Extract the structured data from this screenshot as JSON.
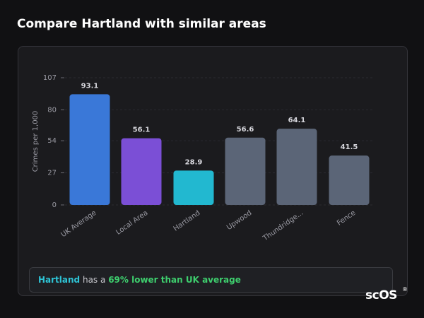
{
  "chart_data": {
    "type": "bar",
    "title": "Compare Hartland with similar areas",
    "y_label": "Crimes per 1,000",
    "categories": [
      "UK Average",
      "Local Area",
      "Hartland",
      "Upwood",
      "Thundridge...",
      "Fence"
    ],
    "values": [
      93.1,
      56.1,
      28.9,
      56.6,
      64.1,
      41.5
    ],
    "colors": [
      "#3a78d8",
      "#7b4fd6",
      "#22b8d0",
      "#5b6577",
      "#5b6577",
      "#5b6577"
    ],
    "ylim": [
      0,
      107
    ],
    "yticks": [
      0,
      27,
      54,
      80,
      107
    ],
    "grid": true,
    "summary": {
      "area": "Hartland",
      "text": "has a",
      "highlight": "69% lower than UK average"
    },
    "logo": "scOS",
    "logo_mark": "®"
  }
}
